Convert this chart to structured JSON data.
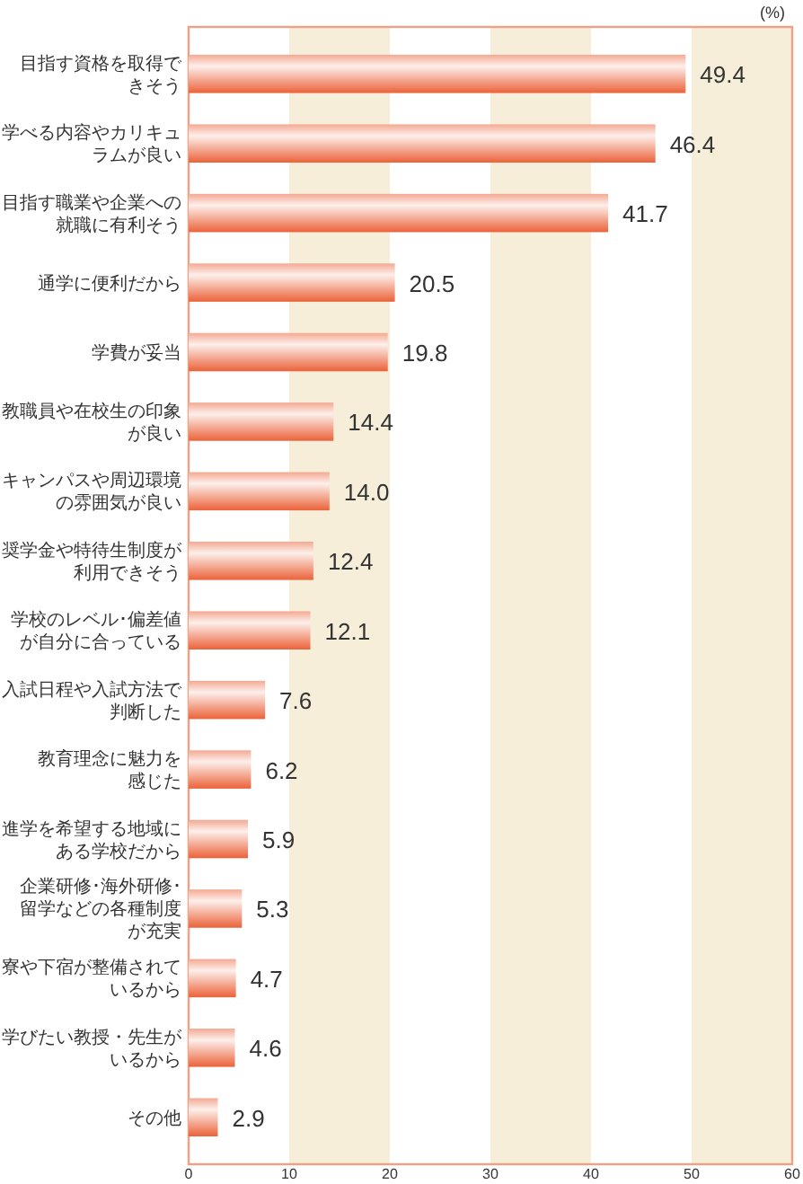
{
  "chart_data": {
    "type": "bar",
    "orientation": "horizontal",
    "xlabel": "(%)",
    "categories": [
      "目指す資格を取得できそう",
      "学べる内容やカリキュラムが良い",
      "目指す職業や企業への就職に有利そう",
      "通学に便利だから",
      "学費が妥当",
      "教職員や在校生の印象が良い",
      "キャンパスや周辺環境の雰囲気が良い",
      "奨学金や特待生制度が利用できそう",
      "学校のレベル･偏差値が自分に合っている",
      "入試日程や入試方法で判断した",
      "教育理念に魅力を感じた",
      "進学を希望する地域にある学校だから",
      "企業研修･海外研修･留学などの各種制度が充実",
      "寮や下宿が整備されているから",
      "学びたい教授・先生がいるから",
      "その他"
    ],
    "values": [
      49.4,
      46.4,
      41.7,
      20.5,
      19.8,
      14.4,
      14.0,
      12.4,
      12.1,
      7.6,
      6.2,
      5.9,
      5.3,
      4.7,
      4.6,
      2.9
    ],
    "value_labels": [
      "49.4",
      "46.4",
      "41.7",
      "20.5",
      "19.8",
      "14.4",
      "14.0",
      "12.4",
      "12.1",
      "7.6",
      "6.2",
      "5.9",
      "5.3",
      "4.7",
      "4.6",
      "2.9"
    ],
    "color": "#eb6239",
    "xlim": [
      0,
      60
    ],
    "xticks": [
      0,
      10,
      20,
      30,
      40,
      50,
      60
    ],
    "bands": [
      {
        "axis": "x",
        "from": 10,
        "to": 20,
        "color": "#f6eed8"
      },
      {
        "axis": "x",
        "from": 30,
        "to": 40,
        "color": "#f6eed8"
      },
      {
        "axis": "x",
        "from": 50,
        "to": 60,
        "color": "#f6eed8"
      }
    ]
  }
}
